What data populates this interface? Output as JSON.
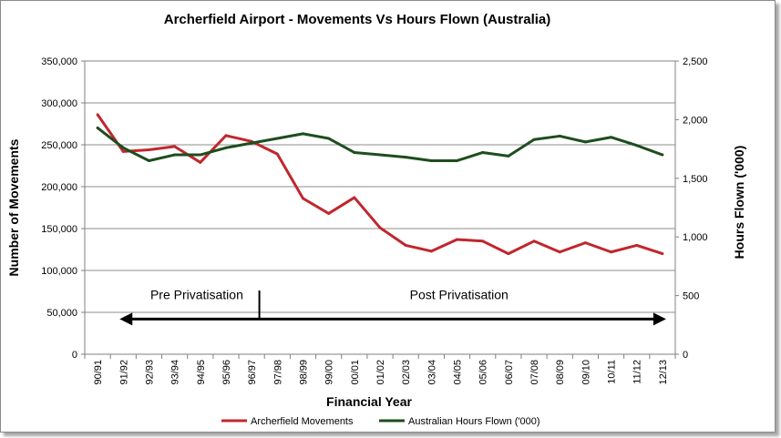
{
  "chart_data": {
    "type": "line",
    "title": "Archerfield Airport - Movements Vs Hours Flown (Australia)",
    "xlabel": "Financial Year",
    "ylabel_left": "Number of Movements",
    "ylabel_right": "Hours Flown ('000)",
    "categories": [
      "90/91",
      "91/92",
      "92/93",
      "93/94",
      "94/95",
      "95/96",
      "96/97",
      "97/98",
      "98/99",
      "99/00",
      "00/01",
      "01/02",
      "02/03",
      "03/04",
      "04/05",
      "05/06",
      "06/07",
      "07/08",
      "08/09",
      "09/10",
      "10/11",
      "11/12",
      "12/13"
    ],
    "ylim_left": [
      0,
      350000
    ],
    "yticks_left": [
      "0",
      "50,000",
      "100,000",
      "150,000",
      "200,000",
      "250,000",
      "300,000",
      "350,000"
    ],
    "ylim_right": [
      0,
      2500
    ],
    "yticks_right": [
      "0",
      "500",
      "1,000",
      "1,500",
      "2,000",
      "2,500"
    ],
    "grid": "horizontal",
    "legend_position": "bottom",
    "series": [
      {
        "name": "Archerfield Movements",
        "axis": "left",
        "color": "#c0272d",
        "values": [
          286000,
          242000,
          244000,
          248000,
          229000,
          261000,
          254000,
          239000,
          186000,
          168000,
          187000,
          151000,
          130000,
          123000,
          137000,
          135000,
          120000,
          135000,
          122000,
          133000,
          122000,
          130000,
          120000
        ]
      },
      {
        "name": "Australian Hours Flown ('000)",
        "axis": "right",
        "color": "#1e4d1e",
        "values": [
          1930,
          1760,
          1650,
          1700,
          1700,
          1760,
          1800,
          1840,
          1880,
          1840,
          1720,
          1700,
          1680,
          1650,
          1650,
          1720,
          1690,
          1830,
          1860,
          1810,
          1850,
          1780,
          1700
        ]
      }
    ],
    "annotations": [
      {
        "text": "Pre Privatisation",
        "from": "91/92",
        "to": "96/97"
      },
      {
        "text": "Post Privatisation",
        "from": "96/97",
        "to": "12/13"
      }
    ]
  }
}
